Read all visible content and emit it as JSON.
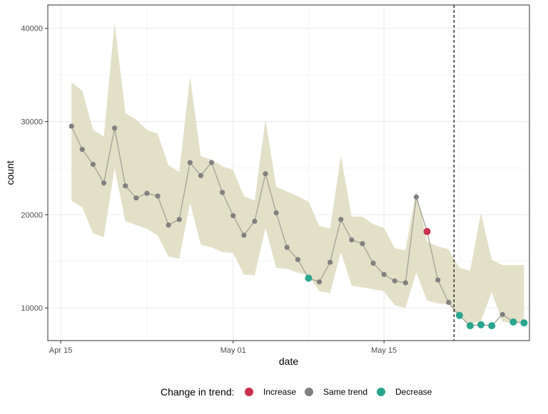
{
  "chart_data": {
    "type": "line",
    "x_axis": {
      "label": "date",
      "tick_labels": [
        "Apr 15",
        "May 01",
        "May 15"
      ],
      "tick_day_index": [
        0,
        16,
        30
      ],
      "range_day_index": [
        -1.2,
        43.5
      ]
    },
    "y_axis": {
      "label": "count",
      "tick_labels": [
        "10000",
        "20000",
        "30000",
        "40000"
      ],
      "ticks": [
        10000,
        20000,
        30000,
        40000
      ],
      "range": [
        6500,
        42500
      ]
    },
    "grid": true,
    "vline_day_index": 36.5,
    "ribbon": {
      "x": [
        1,
        2,
        3,
        4,
        5,
        6,
        7,
        8,
        9,
        10,
        11,
        12,
        13,
        14,
        15,
        16,
        17,
        18,
        19,
        20,
        21,
        22,
        23,
        24,
        25,
        26,
        27,
        28,
        29,
        30,
        31,
        32,
        33,
        34,
        35,
        36,
        37,
        38,
        39,
        40,
        41,
        42,
        43
      ],
      "lower": [
        21500,
        20800,
        18000,
        17600,
        25000,
        19300,
        18900,
        18500,
        17800,
        15500,
        15300,
        21300,
        16800,
        16500,
        16000,
        15900,
        13600,
        13500,
        18600,
        14300,
        14200,
        13800,
        13500,
        11800,
        11600,
        16000,
        12400,
        12200,
        12000,
        11800,
        10300,
        10000,
        13800,
        10800,
        10500,
        10400,
        9000,
        8300,
        8600,
        11700,
        8500,
        8400,
        8400
      ],
      "upper": [
        34200,
        33300,
        29100,
        28400,
        40600,
        30900,
        30200,
        29100,
        28700,
        25300,
        24600,
        34800,
        26300,
        25900,
        25200,
        24800,
        22000,
        21500,
        30200,
        23000,
        22500,
        22000,
        21400,
        18800,
        18500,
        26300,
        19800,
        19800,
        19000,
        18600,
        16400,
        16200,
        22600,
        17100,
        16600,
        16300,
        14300,
        14000,
        20200,
        15200,
        14600,
        14600,
        14600
      ]
    },
    "series": [
      {
        "name": "count",
        "x": [
          1,
          2,
          3,
          4,
          5,
          6,
          7,
          8,
          9,
          10,
          11,
          12,
          13,
          14,
          15,
          16,
          17,
          18,
          19,
          20,
          21,
          22,
          23,
          24,
          25,
          26,
          27,
          28,
          29,
          30,
          31,
          32,
          33,
          34,
          35,
          36,
          37,
          38,
          39,
          40,
          41,
          42,
          43
        ],
        "values": [
          29500,
          27000,
          25400,
          23400,
          29300,
          23100,
          21800,
          22300,
          22000,
          18900,
          19500,
          25600,
          24200,
          25600,
          22400,
          19900,
          17800,
          19300,
          24400,
          20200,
          16500,
          15200,
          13200,
          12800,
          14900,
          19500,
          17300,
          16900,
          14800,
          13600,
          12900,
          12700,
          21900,
          18200,
          13000,
          10600,
          9200,
          8100,
          8200,
          8100,
          9300,
          8500,
          8400
        ],
        "trend": [
          "same",
          "same",
          "same",
          "same",
          "same",
          "same",
          "same",
          "same",
          "same",
          "same",
          "same",
          "same",
          "same",
          "same",
          "same",
          "same",
          "same",
          "same",
          "same",
          "same",
          "same",
          "same",
          "decrease",
          "same",
          "same",
          "same",
          "same",
          "same",
          "same",
          "same",
          "same",
          "same",
          "same",
          "increase",
          "same",
          "same",
          "decrease",
          "decrease",
          "decrease",
          "decrease",
          "same",
          "decrease",
          "decrease"
        ]
      }
    ],
    "legend": {
      "title": "Change in trend:",
      "position": "bottom",
      "items": [
        {
          "key": "increase",
          "label": "Increase",
          "color": "#c9304f"
        },
        {
          "key": "same",
          "label": "Same trend",
          "color": "#808080"
        },
        {
          "key": "decrease",
          "label": "Decrease",
          "color": "#2aa58e"
        }
      ]
    },
    "colors": {
      "ribbon": "#e2e0c7",
      "line": "#a6a69a",
      "grid": "#ebebeb",
      "panel_border": "#333333"
    }
  }
}
